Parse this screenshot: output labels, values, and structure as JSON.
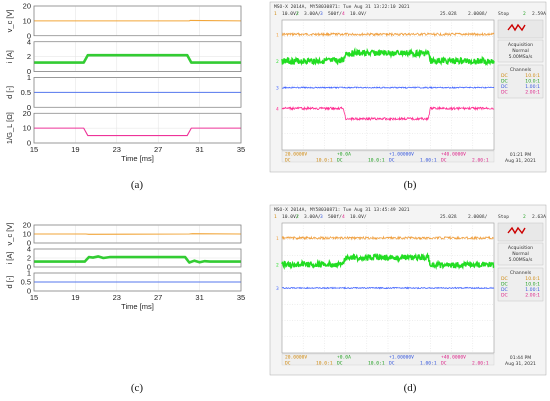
{
  "captions": [
    "(a)",
    "(b)",
    "(c)",
    "(d)"
  ],
  "chart_data": [
    {
      "type": "line",
      "panel": "a",
      "xlabel": "Time [ms]",
      "xlim": [
        15,
        35
      ],
      "xticks": [
        "15",
        "19",
        "23",
        "27",
        "31",
        "35"
      ],
      "subplots": [
        {
          "ylabel": "v_c [V]",
          "yticks": [
            "0",
            "10",
            "20"
          ],
          "ylim": [
            0,
            20
          ],
          "color": "#f2a63a",
          "x": [
            15,
            30,
            30.1,
            35
          ],
          "y": [
            10,
            10,
            10.3,
            10
          ]
        },
        {
          "ylabel": "i [A]",
          "yticks": [
            "0",
            "2",
            "4"
          ],
          "ylim": [
            0,
            4
          ],
          "color": "#33cc33",
          "x": [
            15,
            19.8,
            20.2,
            29.8,
            30.2,
            35
          ],
          "y": [
            1.2,
            1.2,
            2.2,
            2.2,
            1.2,
            1.2
          ]
        },
        {
          "ylabel": "d [-]",
          "yticks": [
            "0",
            "0.5",
            "1"
          ],
          "ylim": [
            0,
            1
          ],
          "color": "#5577ee",
          "x": [
            15,
            35
          ],
          "y": [
            0.5,
            0.5
          ]
        },
        {
          "ylabel": "1/G_L [Ω]",
          "yticks": [
            "0",
            "10",
            "20"
          ],
          "ylim": [
            0,
            20
          ],
          "color": "#ee3399",
          "x": [
            15,
            19.8,
            20.2,
            29.8,
            30.2,
            35
          ],
          "y": [
            10,
            10,
            5,
            5,
            10,
            10
          ]
        }
      ]
    },
    {
      "type": "line",
      "panel": "c",
      "xlabel": "Time [ms]",
      "xlim": [
        15,
        35
      ],
      "xticks": [
        "15",
        "19",
        "23",
        "27",
        "31",
        "35"
      ],
      "subplots": [
        {
          "ylabel": "v_c [V]",
          "yticks": [
            "0",
            "10",
            "20"
          ],
          "ylim": [
            0,
            20
          ],
          "color": "#f2a63a",
          "x": [
            15,
            20,
            20.3,
            30,
            30.3,
            35
          ],
          "y": [
            10,
            10,
            9.7,
            10,
            10.3,
            10
          ]
        },
        {
          "ylabel": "i [A]",
          "yticks": [
            "0",
            "2",
            "4"
          ],
          "ylim": [
            0,
            4
          ],
          "color": "#33cc33",
          "x": [
            15,
            19.9,
            20.3,
            20.7,
            21.2,
            21.7,
            22.3,
            29.6,
            30.0,
            30.5,
            31.0,
            31.5,
            32.0,
            35
          ],
          "y": [
            1.2,
            1.2,
            2.2,
            2.1,
            2.35,
            2.0,
            2.2,
            2.2,
            1.0,
            1.4,
            1.05,
            1.3,
            1.2,
            1.2
          ]
        },
        {
          "ylabel": "d [-]",
          "yticks": [
            "0",
            "0.5",
            "1"
          ],
          "ylim": [
            0,
            1
          ],
          "color": "#5577ee",
          "x": [
            15,
            35
          ],
          "y": [
            0.5,
            0.5
          ]
        }
      ]
    }
  ],
  "scopes": [
    {
      "panel": "b",
      "header": "MSO-X 2014A, MY58030871: Tue Aug 31 13:22:10 2021",
      "settings": [
        "1",
        "10.0V/",
        "2",
        "3.00A/",
        "3",
        "500f/",
        "4",
        "10.0V/",
        "25.02ß",
        "2.000ß/",
        "Stop",
        "2",
        "2.59A"
      ],
      "sidebar": {
        "acq": "Acquisition",
        "mode": "Normal",
        "rate": "5.00MSa/s",
        "channels": "Channels",
        "rows": [
          [
            "DC",
            "10.0:1"
          ],
          [
            "DC",
            "10.0:1"
          ],
          [
            "DC",
            "1.00:1"
          ],
          [
            "DC",
            "2.00:1"
          ]
        ]
      },
      "footer": [
        "20.0000V",
        "DC",
        "10.0:1",
        "+0.0A",
        "DC",
        "10.0:1",
        "+1.00000V",
        "DC",
        "1.00:1",
        "+40.0000V",
        "DC",
        "2.00:1"
      ],
      "time": "01:21 PM",
      "date": "Aug 31, 2021",
      "traces": [
        {
          "color": "#f0a040",
          "levels": [
            [
              0,
              0.11
            ],
            [
              1,
              0.11
            ]
          ],
          "noise": 1.2
        },
        {
          "color": "#22dd22",
          "levels": [
            [
              0,
              0.315
            ],
            [
              0.29,
              0.315
            ],
            [
              0.3,
              0.255
            ],
            [
              0.69,
              0.255
            ],
            [
              0.7,
              0.315
            ],
            [
              1,
              0.315
            ]
          ],
          "noise": 3
        },
        {
          "color": "#4466ff",
          "levels": [
            [
              0,
              0.52
            ],
            [
              1,
              0.52
            ]
          ],
          "noise": 0.6
        },
        {
          "color": "#ff2a90",
          "levels": [
            [
              0,
              0.68
            ],
            [
              0.29,
              0.68
            ],
            [
              0.3,
              0.76
            ],
            [
              0.69,
              0.76
            ],
            [
              0.7,
              0.68
            ],
            [
              1,
              0.68
            ]
          ],
          "noise": 1.2
        }
      ]
    },
    {
      "panel": "d",
      "header": "MSO-X 2014A, MY58030871: Tue Aug 31 13:45:49 2021",
      "settings": [
        "1",
        "10.0V/",
        "2",
        "3.00A/",
        "3",
        "500f/",
        "4",
        "10.0V/",
        "25.02ß",
        "2.000ß/",
        "Stop",
        "2",
        "2.63A"
      ],
      "sidebar": {
        "acq": "Acquisition",
        "mode": "Normal",
        "rate": "5.00MSa/s",
        "channels": "Channels",
        "rows": [
          [
            "DC",
            "10.0:1"
          ],
          [
            "DC",
            "10.0:1"
          ],
          [
            "DC",
            "1.00:1"
          ],
          [
            "DC",
            "2.00:1"
          ]
        ]
      },
      "footer": [
        "20.0000V",
        "DC",
        "10.0:1",
        "+0.0A",
        "DC",
        "10.0:1",
        "+1.00000V",
        "DC",
        "1.00:1",
        "+40.0000V",
        "DC",
        "2.00:1"
      ],
      "time": "01:44 PM",
      "date": "Aug 31, 2021",
      "traces": [
        {
          "color": "#f0a040",
          "levels": [
            [
              0,
              0.115
            ],
            [
              1,
              0.115
            ]
          ],
          "noise": 1.2
        },
        {
          "color": "#22dd22",
          "levels": [
            [
              0,
              0.32
            ],
            [
              0.29,
              0.32
            ],
            [
              0.3,
              0.265
            ],
            [
              0.69,
              0.265
            ],
            [
              0.7,
              0.325
            ],
            [
              1,
              0.32
            ]
          ],
          "noise": 3
        },
        {
          "color": "#4466ff",
          "levels": [
            [
              0,
              0.5
            ],
            [
              1,
              0.5
            ]
          ],
          "noise": 0.6
        }
      ]
    }
  ]
}
